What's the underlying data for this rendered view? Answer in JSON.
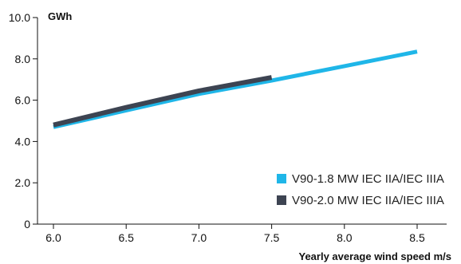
{
  "chart_data": {
    "type": "line",
    "y_unit": "GWh",
    "xlabel": "Yearly average wind speed m/s",
    "xlim": [
      6.0,
      8.5
    ],
    "ylim": [
      0,
      10.0
    ],
    "x_ticks": [
      "6.0",
      "6.5",
      "7.0",
      "7.5",
      "8.0",
      "8.5"
    ],
    "y_ticks": [
      "0",
      "2.0",
      "4.0",
      "6.0",
      "8.0",
      "10.0"
    ],
    "grid": false,
    "legend_position": "bottom-right",
    "series": [
      {
        "name": "V90-1.8 MW IEC IIA/IEC IIIA",
        "color": "#1fb6e8",
        "x": [
          6.0,
          6.5,
          7.0,
          7.5,
          8.0,
          8.5
        ],
        "y": [
          4.7,
          5.5,
          6.3,
          6.95,
          7.65,
          8.35
        ]
      },
      {
        "name": "V90-2.0 MW IEC IIA/IEC IIIA",
        "color": "#3d4452",
        "x": [
          6.0,
          6.5,
          7.0,
          7.5
        ],
        "y": [
          4.8,
          5.65,
          6.45,
          7.1
        ]
      }
    ]
  }
}
